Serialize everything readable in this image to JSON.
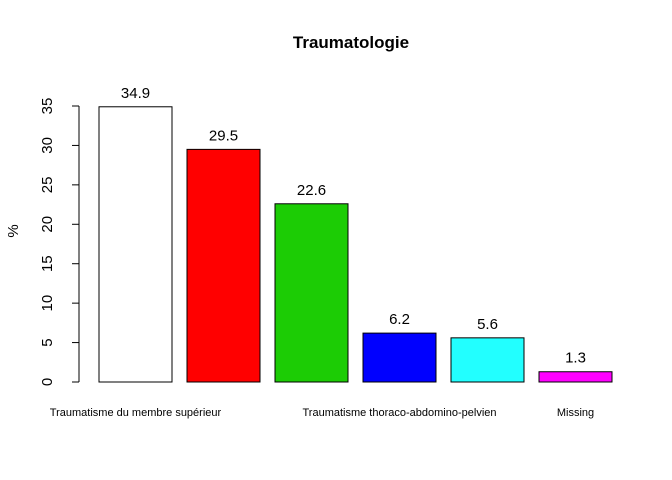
{
  "chart_data": {
    "type": "bar",
    "title": "Traumatologie",
    "xlabel": "",
    "ylabel": "%",
    "ylim": [
      0,
      35
    ],
    "yticks": [
      0,
      5,
      10,
      15,
      20,
      25,
      30,
      35
    ],
    "categories": [
      "Traumatisme du membre supérieur",
      "",
      "",
      "Traumatisme thoraco-abdomino-pelvien",
      "",
      "Missing"
    ],
    "values": [
      34.9,
      29.5,
      22.6,
      6.2,
      5.6,
      1.3
    ],
    "value_labels": [
      "34.9",
      "29.5",
      "22.6",
      "6.2",
      "5.6",
      "1.3"
    ],
    "colors": [
      "#ffffff",
      "#ff0000",
      "#1ccc05",
      "#0000ff",
      "#22ffff",
      "#ff00ff"
    ],
    "grid": false,
    "legend": "none"
  }
}
